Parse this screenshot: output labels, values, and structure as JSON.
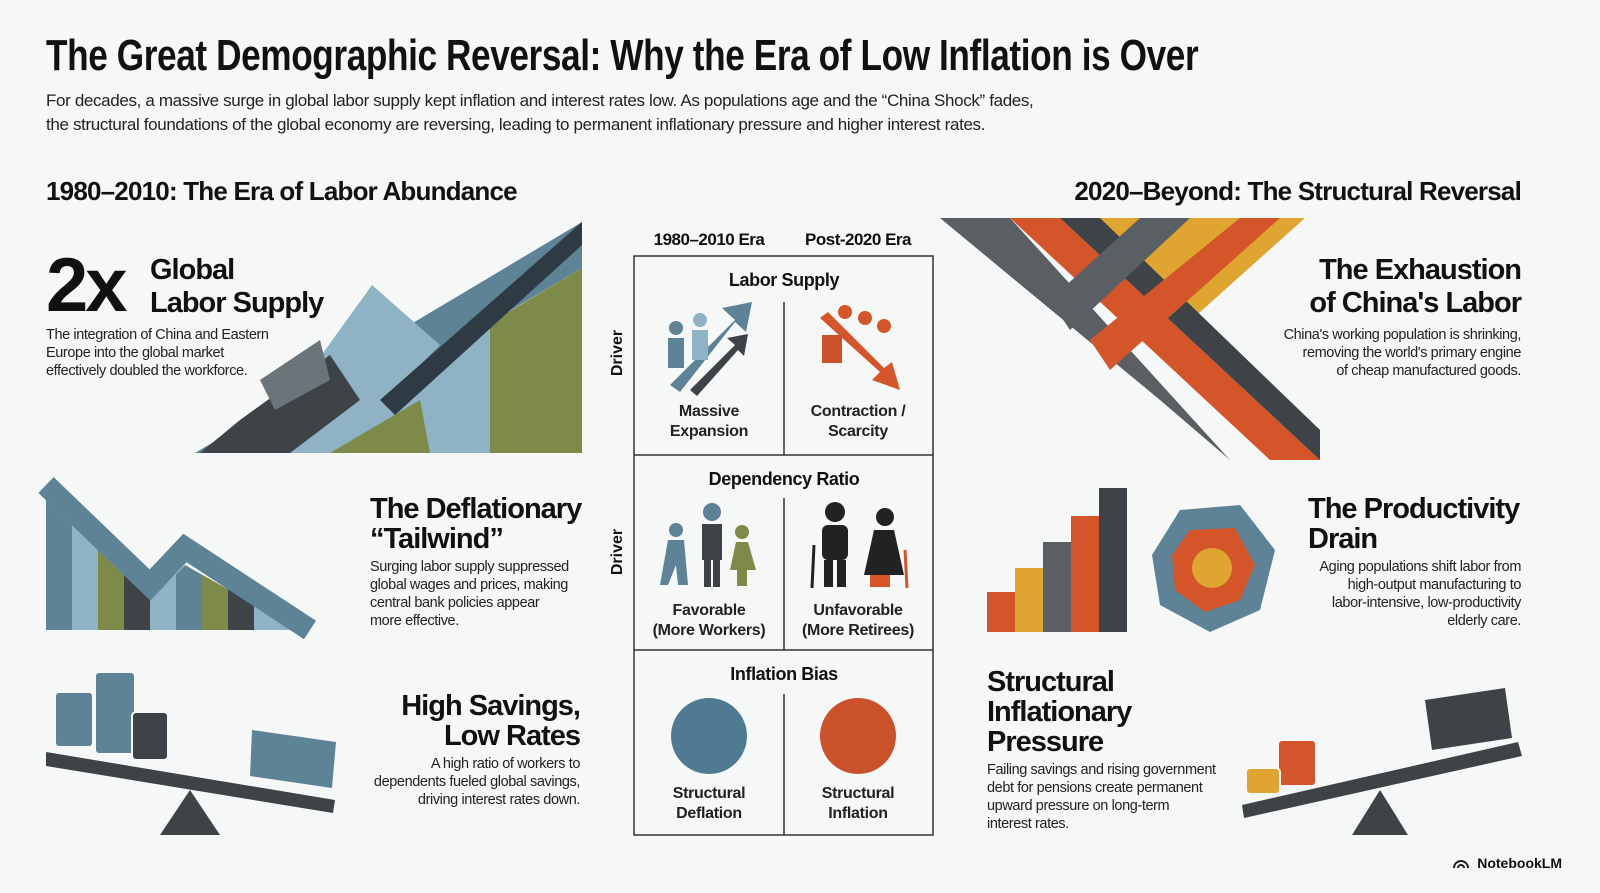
{
  "header": {
    "title": "The Great Demographic Reversal: Why the Era of Low Inflation is Over",
    "subtitle_lines": [
      "For decades, a massive surge in global labor supply kept inflation and interest rates low. As populations age and the “China Shock” fades,",
      "the structural foundations of the global economy are reversing, leading to permanent inflationary pressure and higher interest rates."
    ]
  },
  "left": {
    "heading": "1980–2010: The Era of Labor Abundance",
    "items": [
      {
        "stat": "2x",
        "title_lines": [
          "Global",
          "Labor Supply"
        ],
        "text_lines": [
          "The integration of China and Eastern",
          "Europe into the global market",
          "effectively doubled the workforce."
        ]
      },
      {
        "title_lines": [
          "The Deflationary",
          "“Tailwind”"
        ],
        "text_lines": [
          "Surging labor supply suppressed",
          "global wages and prices, making",
          "central bank policies appear",
          "more effective."
        ]
      },
      {
        "title_lines": [
          "High Savings,",
          "Low Rates"
        ],
        "text_lines": [
          "A high ratio of workers to",
          "dependents fueled global savings,",
          "driving interest rates down."
        ]
      }
    ]
  },
  "center": {
    "columns": [
      "1980–2010 Era",
      "Post-2020 Era"
    ],
    "rows": [
      {
        "side_label": "Driver",
        "title": "Labor Supply",
        "left_lines": [
          "Massive",
          "Expansion"
        ],
        "right_lines": [
          "Contraction /",
          "Scarcity"
        ]
      },
      {
        "side_label": "Driver",
        "title": "Dependency Ratio",
        "left_lines": [
          "Favorable",
          "(More Workers)"
        ],
        "right_lines": [
          "Unfavorable",
          "(More Retirees)"
        ]
      },
      {
        "title": "Inflation Bias",
        "left_lines": [
          "Structural",
          "Deflation"
        ],
        "right_lines": [
          "Structural",
          "Inflation"
        ]
      }
    ]
  },
  "right": {
    "heading": "2020–Beyond: The Structural Reversal",
    "items": [
      {
        "title_lines": [
          "The Exhaustion",
          "of China's Labor"
        ],
        "text_lines": [
          "China's working population is shrinking,",
          "removing the world's primary engine",
          "of cheap manufactured goods."
        ]
      },
      {
        "title_lines": [
          "The Productivity",
          "Drain"
        ],
        "text_lines": [
          "Aging populations shift labor from",
          "high-output manufacturing to",
          "labor-intensive, low-productivity",
          "elderly care."
        ]
      },
      {
        "title_lines": [
          "Structural",
          "Inflationary",
          "Pressure"
        ],
        "text_lines": [
          "Failing savings and rising government",
          "debt for pensions create permanent",
          "upward pressure on long-term",
          "interest rates."
        ]
      }
    ]
  },
  "footer": {
    "brand": "NotebookLM"
  }
}
